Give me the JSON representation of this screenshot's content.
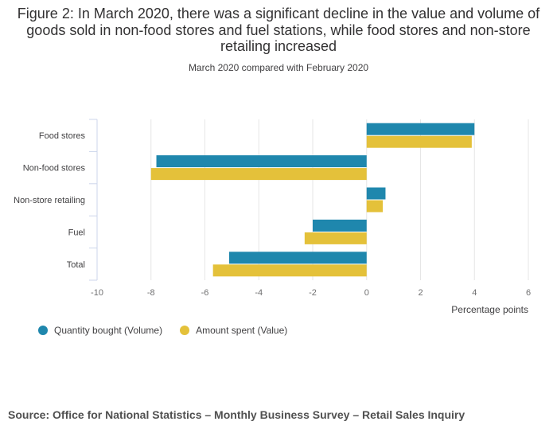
{
  "chart_data": {
    "type": "bar",
    "orientation": "horizontal",
    "title": "Figure 2: In March 2020, there was a significant decline in the value and volume of goods sold in non-food stores and fuel stations, while food stores and non-store retailing increased",
    "subtitle": "March 2020 compared with February 2020",
    "categories": [
      "Food stores",
      "Non-food stores",
      "Non-store retailing",
      "Fuel",
      "Total"
    ],
    "series": [
      {
        "name": "Quantity bought (Volume)",
        "color": "#1f87ad",
        "values": [
          4.0,
          -7.8,
          0.7,
          -2.0,
          -5.1
        ]
      },
      {
        "name": "Amount spent (Value)",
        "color": "#e4c13a",
        "values": [
          3.9,
          -8.0,
          0.6,
          -2.3,
          -5.7
        ]
      }
    ],
    "xlabel": "Percentage points",
    "xlim": [
      -10,
      6
    ],
    "xticks": [
      "-10",
      "-8",
      "-6",
      "-4",
      "-2",
      "0",
      "2",
      "4",
      "6"
    ],
    "grid": true,
    "legend_position": "bottom-left"
  },
  "source": "Source: Office for National Statistics – Monthly Business Survey – Retail Sales Inquiry"
}
